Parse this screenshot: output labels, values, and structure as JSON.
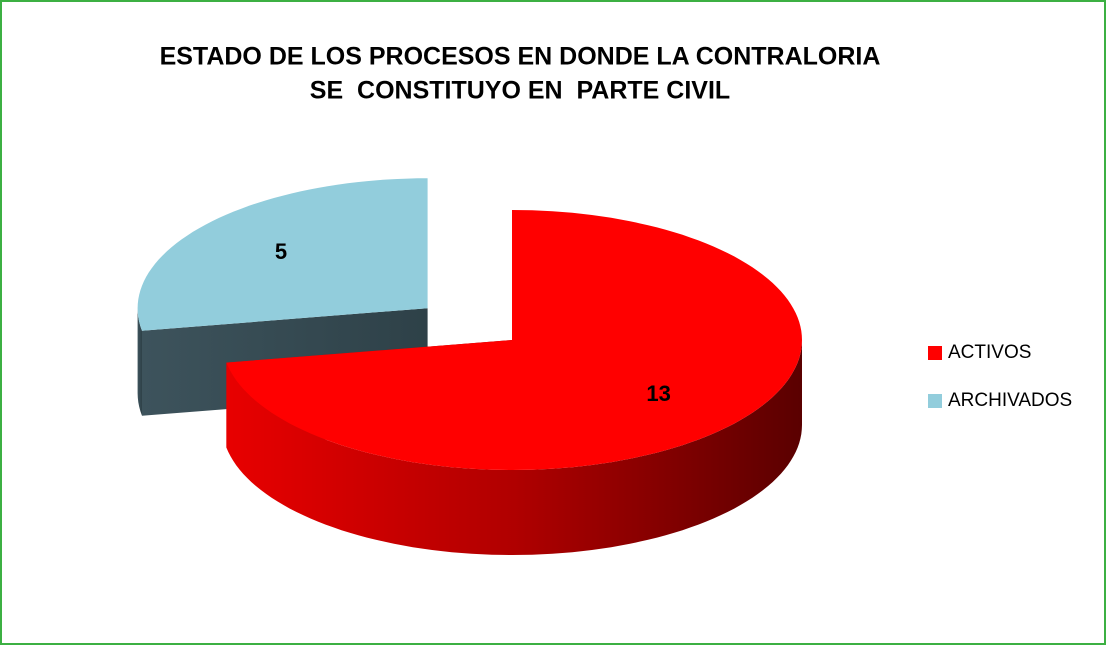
{
  "chart_data": {
    "type": "pie3d",
    "title": [
      "ESTADO DE LOS PROCESOS EN DONDE LA CONTRALORIA",
      "SE  CONSTITUYO EN  PARTE CIVIL"
    ],
    "categories": [
      "ACTIVOS",
      "ARCHIVADOS"
    ],
    "values": [
      13,
      5
    ],
    "colors": [
      "#ff0000",
      "#92cddc"
    ],
    "legend": "right"
  }
}
